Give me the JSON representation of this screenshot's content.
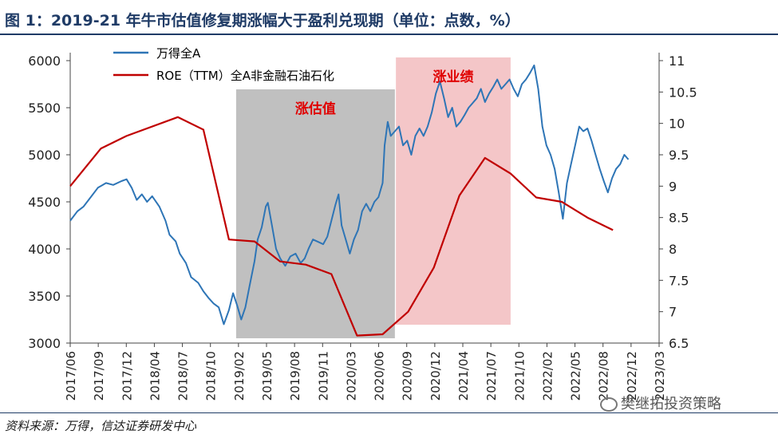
{
  "title": "图 1：2019-21 年牛市估值修复期涨幅大于盈利兑现期（单位：点数，%）",
  "source": "资料来源：万得，信达证券研发中心",
  "watermark": "樊继拓投资策略",
  "chart_data": {
    "type": "line",
    "legend": [
      {
        "name": "万得全A",
        "color": "#2e75b6"
      },
      {
        "name": "ROE（TTM）全A非金融石油石化",
        "color": "#c00000"
      }
    ],
    "x_tick_labels": [
      "2017/06",
      "2017/09",
      "2017/12",
      "2018/04",
      "2018/07",
      "2018/10",
      "2019/02",
      "2019/05",
      "2019/08",
      "2019/11",
      "2020/03",
      "2020/06",
      "2020/09",
      "2020/12",
      "2021/04",
      "2021/07",
      "2021/10",
      "2022/02",
      "2022/05",
      "2022/08",
      "2022/12",
      "2023/03"
    ],
    "y_left": {
      "min": 3000,
      "max": 6000,
      "ticks": [
        3000,
        3500,
        4000,
        4500,
        5000,
        5500,
        6000
      ]
    },
    "y_right": {
      "min": 6.5,
      "max": 11,
      "ticks": [
        6.5,
        7,
        7.5,
        8,
        8.5,
        9,
        9.5,
        10,
        10.5,
        11
      ],
      "tick_labels": [
        "6.5",
        "7",
        "7.5",
        "8",
        "8.5",
        "9",
        "9.5",
        "10",
        "10.5",
        "11"
      ]
    },
    "annotations": [
      {
        "label": "涨估值",
        "x_start": 2019.07,
        "x_end": 2020.62,
        "color": "#c0c0c0",
        "text_color": "#e00000"
      },
      {
        "label": "涨业绩",
        "x_start": 2020.63,
        "x_end": 2021.75,
        "color": "#f4c6c8",
        "text_color": "#e00000"
      }
    ],
    "series": [
      {
        "name": "万得全A",
        "axis": "left",
        "color": "#2e75b6",
        "points": [
          [
            2017.45,
            4300
          ],
          [
            2017.52,
            4400
          ],
          [
            2017.58,
            4450
          ],
          [
            2017.65,
            4550
          ],
          [
            2017.72,
            4650
          ],
          [
            2017.8,
            4700
          ],
          [
            2017.87,
            4680
          ],
          [
            2017.95,
            4720
          ],
          [
            2018.0,
            4740
          ],
          [
            2018.05,
            4650
          ],
          [
            2018.1,
            4520
          ],
          [
            2018.15,
            4580
          ],
          [
            2018.2,
            4500
          ],
          [
            2018.25,
            4560
          ],
          [
            2018.32,
            4450
          ],
          [
            2018.38,
            4300
          ],
          [
            2018.42,
            4150
          ],
          [
            2018.48,
            4080
          ],
          [
            2018.52,
            3950
          ],
          [
            2018.58,
            3850
          ],
          [
            2018.63,
            3700
          ],
          [
            2018.7,
            3640
          ],
          [
            2018.75,
            3550
          ],
          [
            2018.8,
            3480
          ],
          [
            2018.85,
            3420
          ],
          [
            2018.9,
            3380
          ],
          [
            2018.95,
            3200
          ],
          [
            2019.0,
            3350
          ],
          [
            2019.04,
            3530
          ],
          [
            2019.08,
            3400
          ],
          [
            2019.12,
            3250
          ],
          [
            2019.16,
            3380
          ],
          [
            2019.2,
            3600
          ],
          [
            2019.25,
            3870
          ],
          [
            2019.28,
            4100
          ],
          [
            2019.32,
            4230
          ],
          [
            2019.36,
            4450
          ],
          [
            2019.38,
            4490
          ],
          [
            2019.42,
            4250
          ],
          [
            2019.46,
            4000
          ],
          [
            2019.5,
            3900
          ],
          [
            2019.55,
            3820
          ],
          [
            2019.6,
            3920
          ],
          [
            2019.65,
            3950
          ],
          [
            2019.7,
            3850
          ],
          [
            2019.74,
            3900
          ],
          [
            2019.78,
            4010
          ],
          [
            2019.82,
            4100
          ],
          [
            2019.88,
            4070
          ],
          [
            2019.92,
            4050
          ],
          [
            2019.96,
            4130
          ],
          [
            2020.0,
            4300
          ],
          [
            2020.04,
            4470
          ],
          [
            2020.07,
            4580
          ],
          [
            2020.1,
            4250
          ],
          [
            2020.14,
            4100
          ],
          [
            2020.18,
            3950
          ],
          [
            2020.22,
            4100
          ],
          [
            2020.26,
            4200
          ],
          [
            2020.3,
            4400
          ],
          [
            2020.34,
            4480
          ],
          [
            2020.38,
            4400
          ],
          [
            2020.42,
            4500
          ],
          [
            2020.46,
            4550
          ],
          [
            2020.5,
            4700
          ],
          [
            2020.52,
            5100
          ],
          [
            2020.55,
            5350
          ],
          [
            2020.58,
            5200
          ],
          [
            2020.62,
            5250
          ],
          [
            2020.66,
            5300
          ],
          [
            2020.7,
            5100
          ],
          [
            2020.74,
            5150
          ],
          [
            2020.78,
            5000
          ],
          [
            2020.82,
            5200
          ],
          [
            2020.86,
            5280
          ],
          [
            2020.9,
            5200
          ],
          [
            2020.94,
            5300
          ],
          [
            2020.98,
            5450
          ],
          [
            2021.02,
            5650
          ],
          [
            2021.06,
            5780
          ],
          [
            2021.1,
            5600
          ],
          [
            2021.14,
            5400
          ],
          [
            2021.18,
            5500
          ],
          [
            2021.22,
            5300
          ],
          [
            2021.26,
            5350
          ],
          [
            2021.3,
            5420
          ],
          [
            2021.34,
            5500
          ],
          [
            2021.38,
            5550
          ],
          [
            2021.42,
            5600
          ],
          [
            2021.46,
            5700
          ],
          [
            2021.5,
            5560
          ],
          [
            2021.54,
            5650
          ],
          [
            2021.58,
            5720
          ],
          [
            2021.62,
            5800
          ],
          [
            2021.66,
            5700
          ],
          [
            2021.7,
            5750
          ],
          [
            2021.74,
            5800
          ],
          [
            2021.78,
            5700
          ],
          [
            2021.82,
            5620
          ],
          [
            2021.86,
            5750
          ],
          [
            2021.9,
            5800
          ],
          [
            2021.94,
            5870
          ],
          [
            2021.98,
            5950
          ],
          [
            2022.02,
            5700
          ],
          [
            2022.06,
            5300
          ],
          [
            2022.1,
            5100
          ],
          [
            2022.14,
            5000
          ],
          [
            2022.18,
            4850
          ],
          [
            2022.22,
            4600
          ],
          [
            2022.26,
            4320
          ],
          [
            2022.3,
            4700
          ],
          [
            2022.34,
            4900
          ],
          [
            2022.38,
            5100
          ],
          [
            2022.42,
            5300
          ],
          [
            2022.46,
            5250
          ],
          [
            2022.5,
            5280
          ],
          [
            2022.54,
            5150
          ],
          [
            2022.58,
            5000
          ],
          [
            2022.62,
            4850
          ],
          [
            2022.66,
            4720
          ],
          [
            2022.7,
            4600
          ],
          [
            2022.74,
            4750
          ],
          [
            2022.78,
            4850
          ],
          [
            2022.82,
            4900
          ],
          [
            2022.86,
            5000
          ],
          [
            2022.9,
            4950
          ]
        ]
      },
      {
        "name": "ROE（TTM）全A非金融石油石化",
        "axis": "right",
        "color": "#c00000",
        "points": [
          [
            2017.45,
            9.0
          ],
          [
            2017.75,
            9.6
          ],
          [
            2018.0,
            9.8
          ],
          [
            2018.5,
            10.1
          ],
          [
            2018.75,
            9.9
          ],
          [
            2019.0,
            8.15
          ],
          [
            2019.25,
            8.12
          ],
          [
            2019.5,
            7.8
          ],
          [
            2019.75,
            7.75
          ],
          [
            2020.0,
            7.6
          ],
          [
            2020.25,
            6.62
          ],
          [
            2020.5,
            6.64
          ],
          [
            2020.75,
            7.0
          ],
          [
            2021.0,
            7.7
          ],
          [
            2021.25,
            8.85
          ],
          [
            2021.5,
            9.45
          ],
          [
            2021.75,
            9.2
          ],
          [
            2022.0,
            8.82
          ],
          [
            2022.25,
            8.75
          ],
          [
            2022.5,
            8.5
          ],
          [
            2022.75,
            8.3
          ]
        ]
      }
    ]
  }
}
